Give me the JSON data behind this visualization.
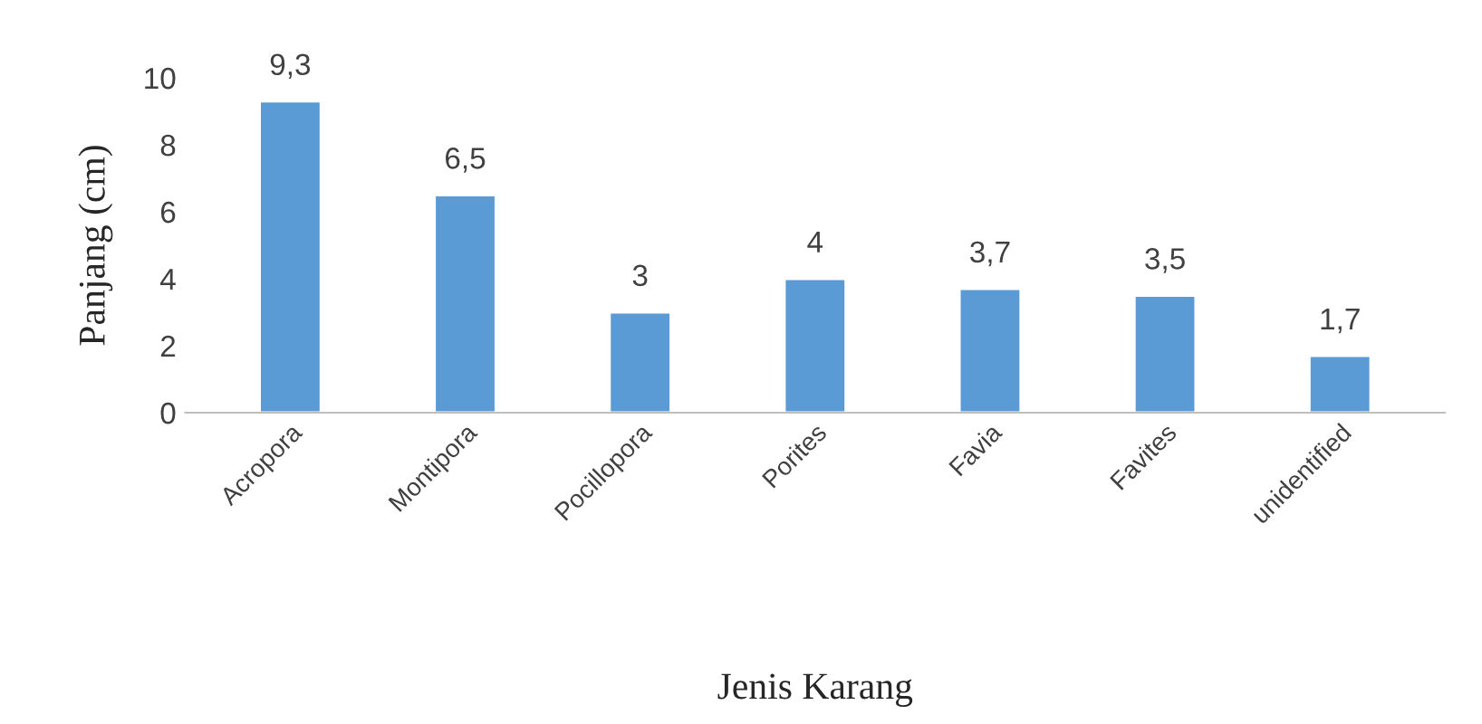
{
  "chart_data": {
    "type": "bar",
    "xlabel": "Jenis Karang",
    "ylabel": "Panjang (cm)",
    "categories": [
      "Acropora",
      "Montipora",
      "Pocillopora",
      "Porites",
      "Favia",
      "Favites",
      "unidentified"
    ],
    "values": [
      9.3,
      6.5,
      3,
      4,
      3.7,
      3.5,
      1.7
    ],
    "value_labels": [
      "9,3",
      "6,5",
      "3",
      "4",
      "3,7",
      "3,5",
      "1,7"
    ],
    "color": "#5b9bd5",
    "ylim": [
      0,
      10
    ],
    "yticks": [
      0,
      2,
      4,
      6,
      8,
      10
    ],
    "grid": false,
    "legend": false
  }
}
